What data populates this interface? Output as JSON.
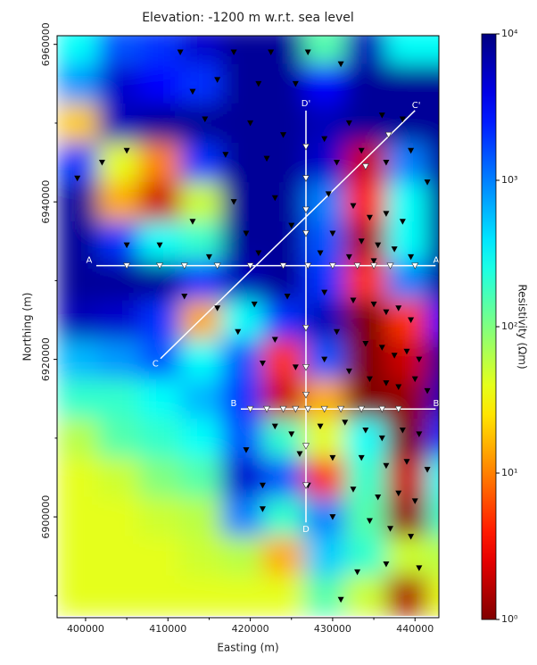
{
  "chart_data": {
    "type": "heatmap",
    "title": "Elevation: -1200 m w.r.t. sea level",
    "xlabel": "Easting (m)",
    "ylabel": "Northing (m)",
    "xlim": [
      396540,
      442900
    ],
    "ylim": [
      6887200,
      6961100
    ],
    "xticks": [
      400000,
      410000,
      420000,
      430000,
      440000
    ],
    "xticks_minor": [
      405000,
      415000,
      425000,
      435000
    ],
    "yticks": [
      6900000,
      6920000,
      6940000,
      6960000
    ],
    "yticks_minor": [
      6890000,
      6910000,
      6930000,
      6950000
    ],
    "colorbar": {
      "label": "Resistivity (Ωm)",
      "scale": "log",
      "colormap": "jet_r",
      "lim": [
        1,
        10000
      ],
      "ticks": [
        {
          "value": 1,
          "label": "10⁰"
        },
        {
          "value": 10,
          "label": "10¹"
        },
        {
          "value": 100,
          "label": "10²"
        },
        {
          "value": 1000,
          "label": "10³"
        },
        {
          "value": 10000,
          "label": "10⁴"
        }
      ]
    },
    "field": {
      "x": [
        399000,
        404000,
        409000,
        414000,
        419000,
        424000,
        429000,
        434000,
        439000,
        444000
      ],
      "y": [
        6960000,
        6955000,
        6950000,
        6945000,
        6940000,
        6935000,
        6930000,
        6925000,
        6920000,
        6915000,
        6910000,
        6905000,
        6900000,
        6895000,
        6890000
      ],
      "values": [
        [
          300,
          1500,
          2000,
          5000,
          8000,
          8000,
          150,
          6000,
          300,
          300
        ],
        [
          800,
          5000,
          3000,
          2000,
          8000,
          8000,
          3000,
          8000,
          8000,
          8000
        ],
        [
          20,
          6000,
          8000,
          8000,
          8000,
          8000,
          6000,
          8000,
          8000,
          8000
        ],
        [
          2000,
          40,
          10,
          2000,
          8000,
          8000,
          5000,
          2,
          1000,
          8000
        ],
        [
          8000,
          15,
          2,
          50,
          8000,
          8000,
          1000,
          4,
          300,
          8000
        ],
        [
          8000,
          2000,
          300,
          200,
          8000,
          8000,
          1500,
          1.5,
          300,
          8000
        ],
        [
          8000,
          8000,
          8000,
          2000,
          6000,
          8000,
          2000,
          5,
          1000,
          8000
        ],
        [
          6000,
          5000,
          2000,
          15,
          300,
          2000,
          6000,
          1,
          5,
          3000
        ],
        [
          600,
          800,
          1500,
          300,
          1500,
          5,
          1500,
          1,
          2,
          8000
        ],
        [
          200,
          200,
          300,
          600,
          2000,
          2,
          15,
          1,
          1.2,
          6000
        ],
        [
          60,
          150,
          200,
          300,
          1500,
          200,
          40,
          300,
          1,
          2000
        ],
        [
          40,
          50,
          100,
          150,
          5000,
          1500,
          5,
          200,
          2,
          300
        ],
        [
          40,
          40,
          50,
          60,
          1000,
          200,
          1000,
          150,
          1.2,
          200
        ],
        [
          40,
          40,
          40,
          50,
          60,
          15,
          500,
          200,
          50,
          60
        ],
        [
          40,
          40,
          40,
          40,
          40,
          40,
          150,
          50,
          1.5,
          40
        ]
      ]
    },
    "profiles": [
      {
        "start": "A",
        "end": "A'",
        "x": [
          401300,
          442500
        ],
        "y": [
          6931900,
          6931900
        ]
      },
      {
        "start": "B",
        "end": "B'",
        "x": [
          418850,
          442500
        ],
        "y": [
          6913700,
          6913700
        ]
      },
      {
        "start": "C",
        "end": "C'",
        "x": [
          409100,
          440000
        ],
        "y": [
          6920100,
          6951600
        ]
      },
      {
        "start": "D",
        "end": "D'",
        "x": [
          426760,
          426760
        ],
        "y": [
          6899300,
          6951600
        ]
      }
    ],
    "profile_stations": {
      "color": "#ffffff",
      "x": [
        405000,
        409000,
        412000,
        416000,
        420000,
        424000,
        427000,
        430000,
        433000,
        435000,
        437000,
        440000,
        420000,
        422000,
        424000,
        425500,
        427000,
        429000,
        431000,
        433500,
        436000,
        438000,
        426760,
        426760,
        426760,
        426760,
        426760,
        426760,
        426760,
        426760,
        426760,
        436800,
        434000
      ],
      "y": [
        6931900,
        6931900,
        6931900,
        6931900,
        6931900,
        6931900,
        6931900,
        6931900,
        6931900,
        6931900,
        6931900,
        6931900,
        6913700,
        6913700,
        6913700,
        6913700,
        6913700,
        6913700,
        6913700,
        6913700,
        6913700,
        6913700,
        6947000,
        6943000,
        6939000,
        6936000,
        6924000,
        6919000,
        6915500,
        6909000,
        6904000,
        6948500,
        6944500
      ]
    },
    "stations": {
      "color": "#000000",
      "x": [
        411500,
        418000,
        422500,
        427000,
        431000,
        416000,
        421000,
        425500,
        413000,
        414500,
        420000,
        424000,
        429000,
        432000,
        436000,
        438500,
        417000,
        422000,
        430500,
        433500,
        436500,
        439500,
        402000,
        405000,
        399000,
        441500,
        418000,
        423000,
        429500,
        432500,
        434500,
        436500,
        438500,
        413000,
        419500,
        425000,
        430000,
        433500,
        435500,
        437500,
        405000,
        409000,
        415000,
        421000,
        428500,
        432000,
        435000,
        439500,
        412000,
        416000,
        420500,
        424500,
        429000,
        432500,
        435000,
        436500,
        438000,
        439500,
        418500,
        423000,
        430500,
        434000,
        436000,
        437500,
        439000,
        440500,
        421500,
        425500,
        429000,
        432000,
        434500,
        436500,
        438000,
        440000,
        441500,
        423000,
        425000,
        428500,
        431500,
        434000,
        436000,
        438500,
        440500,
        419500,
        426000,
        430000,
        433500,
        436500,
        439000,
        441500,
        421500,
        427000,
        432500,
        435500,
        438000,
        440000,
        421500,
        430000,
        434500,
        437000,
        439500,
        433000,
        436500,
        440500,
        431000
      ],
      "y": [
        6959000,
        6959000,
        6959000,
        6959000,
        6957500,
        6955500,
        6955000,
        6955000,
        6954000,
        6950500,
        6950000,
        6948500,
        6948000,
        6950000,
        6951000,
        6950500,
        6946000,
        6945500,
        6945000,
        6946500,
        6945000,
        6946500,
        6945000,
        6946500,
        6943000,
        6942500,
        6940000,
        6940500,
        6941000,
        6939500,
        6938000,
        6938500,
        6937500,
        6937500,
        6936000,
        6937000,
        6936000,
        6935000,
        6934500,
        6934000,
        6934500,
        6934500,
        6933000,
        6933500,
        6933500,
        6933000,
        6932500,
        6933000,
        6928000,
        6926500,
        6927000,
        6928000,
        6928500,
        6927500,
        6927000,
        6926000,
        6926500,
        6925000,
        6923500,
        6922500,
        6923500,
        6922000,
        6921500,
        6920500,
        6921000,
        6920000,
        6919500,
        6919000,
        6920000,
        6918500,
        6917500,
        6917000,
        6916500,
        6917500,
        6916000,
        6911500,
        6910500,
        6911500,
        6912000,
        6911000,
        6910000,
        6911000,
        6910500,
        6908500,
        6908000,
        6907500,
        6907500,
        6906500,
        6907000,
        6906000,
        6904000,
        6904000,
        6903500,
        6902500,
        6903000,
        6902000,
        6901000,
        6900000,
        6899500,
        6898500,
        6897500,
        6893000,
        6894000,
        6893500,
        6889500
      ]
    }
  }
}
